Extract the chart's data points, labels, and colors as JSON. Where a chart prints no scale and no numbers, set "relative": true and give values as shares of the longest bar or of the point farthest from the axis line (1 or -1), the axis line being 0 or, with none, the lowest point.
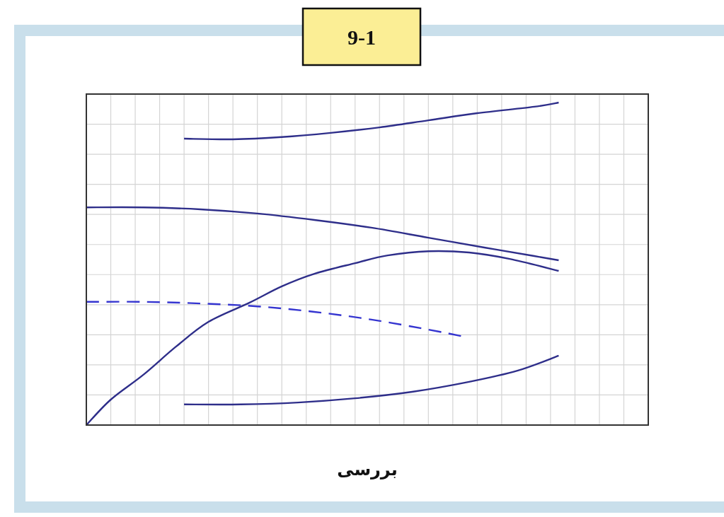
{
  "chart_data": {
    "type": "line",
    "title": "9-1",
    "xlabel": "بررسی",
    "relative": true,
    "grid": true,
    "categories": [
      null,
      null,
      null,
      null,
      null,
      null,
      null,
      null,
      null,
      null,
      null,
      null,
      null,
      null,
      null,
      null,
      null,
      null,
      null,
      null,
      null,
      null,
      null,
      null,
      null,
      null,
      null,
      null,
      null,
      null,
      null,
      null,
      null,
      null,
      null,
      null,
      null,
      null,
      null,
      null,
      null,
      null,
      null,
      null,
      null,
      null,
      null,
      null,
      null,
      null,
      null,
      null,
      null,
      null,
      null,
      null,
      null,
      null,
      null,
      null,
      null,
      null,
      null,
      null,
      null,
      null,
      null,
      null,
      null,
      null
    ],
    "series": [
      {
        "color": "#2e2e8a",
        "line_style": "solid",
        "values": [
          null,
          null,
          null,
          null,
          null,
          null,
          null,
          null,
          null,
          null,
          null,
          null,
          0.888,
          null,
          null,
          null,
          null,
          null,
          0.886,
          null,
          null,
          null,
          null,
          null,
          0.893,
          null,
          null,
          null,
          null,
          null,
          0.906,
          null,
          null,
          null,
          null,
          null,
          0.923,
          null,
          null,
          null,
          null,
          null,
          0.945,
          null,
          null,
          null,
          null,
          null,
          0.967,
          null,
          null,
          null,
          null,
          null,
          null,
          0.987,
          null,
          null,
          1,
          null,
          null,
          null,
          null,
          null,
          null,
          null,
          null,
          null,
          null,
          null
        ]
      },
      {
        "color": "#2e2e8a",
        "line_style": "solid",
        "values": [
          0.675,
          null,
          null,
          null,
          null,
          null,
          null,
          0.675,
          null,
          null,
          null,
          null,
          null,
          null,
          0.669,
          null,
          null,
          null,
          null,
          null,
          null,
          0.656,
          null,
          null,
          null,
          null,
          null,
          null,
          0.636,
          null,
          null,
          null,
          null,
          null,
          null,
          0.612,
          null,
          null,
          null,
          null,
          null,
          null,
          0.581,
          null,
          null,
          null,
          null,
          null,
          null,
          0.55,
          null,
          null,
          null,
          null,
          null,
          0.524,
          null,
          null,
          0.511,
          null,
          null,
          null,
          null,
          null,
          null,
          null,
          null,
          null,
          null,
          null
        ]
      },
      {
        "color": "#2e2e8a",
        "line_style": "solid",
        "values": [
          0,
          null,
          null,
          0.079,
          null,
          null,
          null,
          0.156,
          null,
          null,
          null,
          0.243,
          null,
          null,
          null,
          0.32,
          null,
          null,
          null,
          null,
          0.379,
          null,
          null,
          null,
          0.43,
          null,
          null,
          null,
          0.469,
          null,
          null,
          null,
          null,
          0.502,
          null,
          null,
          null,
          0.526,
          null,
          null,
          null,
          null,
          0.539,
          null,
          null,
          null,
          null,
          0.535,
          null,
          null,
          null,
          null,
          0.515,
          null,
          null,
          null,
          null,
          null,
          0.478,
          null,
          null,
          null,
          null,
          null,
          null,
          null,
          null,
          null,
          null,
          null
        ]
      },
      {
        "color": "#3535d0",
        "line_style": "dashed",
        "values": [
          0.382,
          null,
          null,
          null,
          null,
          null,
          null,
          0.382,
          null,
          null,
          null,
          null,
          null,
          null,
          0.377,
          null,
          null,
          null,
          null,
          null,
          null,
          0.368,
          null,
          null,
          null,
          null,
          null,
          null,
          0.351,
          null,
          null,
          null,
          null,
          null,
          null,
          0.327,
          null,
          null,
          null,
          null,
          null,
          null,
          0.296,
          null,
          null,
          null,
          0.276,
          null,
          null,
          null,
          null,
          null,
          null,
          null,
          null,
          null,
          null,
          null,
          null,
          null,
          null,
          null,
          null,
          null,
          null,
          null,
          null,
          null,
          null,
          null
        ]
      },
      {
        "color": "#2e2e8a",
        "line_style": "solid",
        "values": [
          null,
          null,
          null,
          null,
          null,
          null,
          null,
          null,
          null,
          null,
          null,
          null,
          0.064,
          null,
          null,
          null,
          null,
          null,
          null,
          0.064,
          null,
          null,
          null,
          null,
          null,
          null,
          0.07,
          null,
          null,
          null,
          null,
          null,
          null,
          0.083,
          null,
          null,
          null,
          null,
          null,
          null,
          0.103,
          null,
          null,
          null,
          null,
          null,
          null,
          0.134,
          null,
          null,
          null,
          null,
          null,
          0.169,
          null,
          null,
          null,
          null,
          0.215,
          null,
          null,
          null,
          null,
          null,
          null,
          null,
          null,
          null,
          null,
          null
        ]
      }
    ]
  }
}
